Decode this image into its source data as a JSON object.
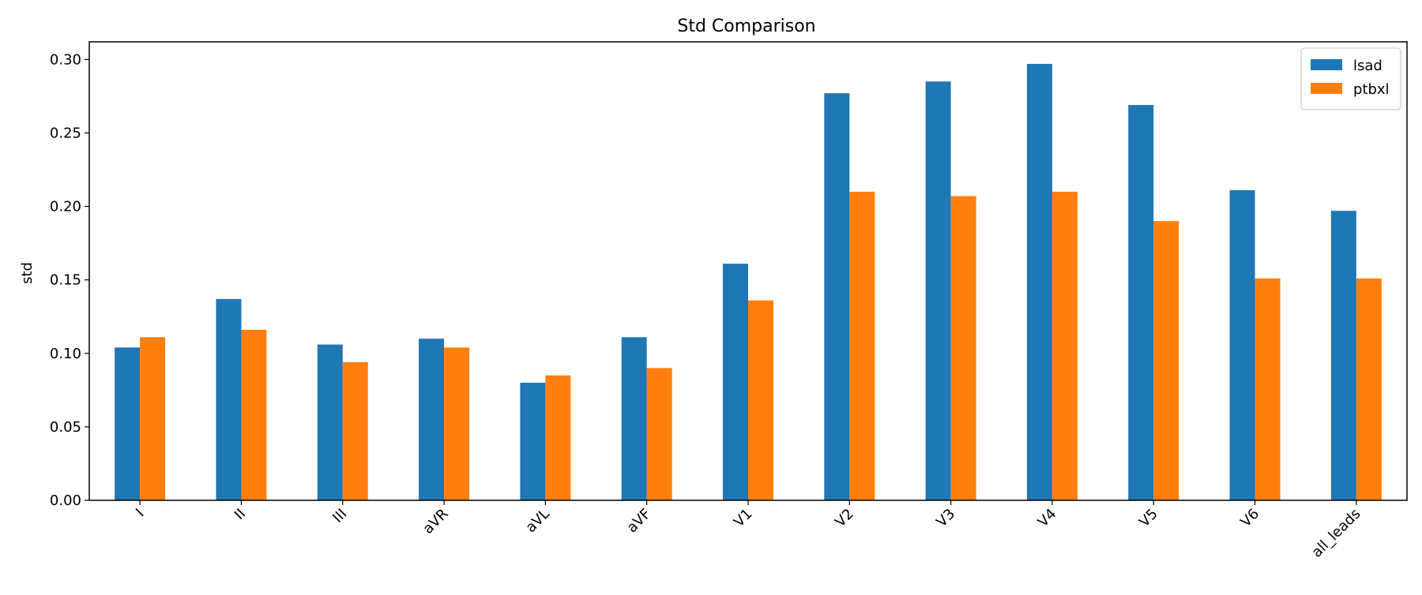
{
  "chart_data": {
    "type": "bar",
    "title": "Std Comparison",
    "xlabel": "",
    "ylabel": "std",
    "ylim": [
      0,
      0.312
    ],
    "yticks": [
      "0.00",
      "0.05",
      "0.10",
      "0.15",
      "0.20",
      "0.25",
      "0.30"
    ],
    "categories": [
      "I",
      "II",
      "III",
      "aVR",
      "aVL",
      "aVF",
      "V1",
      "V2",
      "V3",
      "V4",
      "V5",
      "V6",
      "all_leads"
    ],
    "series": [
      {
        "name": "lsad",
        "color": "#1f77b4",
        "values": [
          0.104,
          0.137,
          0.106,
          0.11,
          0.08,
          0.111,
          0.161,
          0.277,
          0.285,
          0.297,
          0.269,
          0.211,
          0.197
        ]
      },
      {
        "name": "ptbxl",
        "color": "#ff7f0e",
        "values": [
          0.111,
          0.116,
          0.094,
          0.104,
          0.085,
          0.09,
          0.136,
          0.21,
          0.207,
          0.21,
          0.19,
          0.151,
          0.151
        ]
      }
    ],
    "legend_position": "top-right",
    "grid": false
  }
}
